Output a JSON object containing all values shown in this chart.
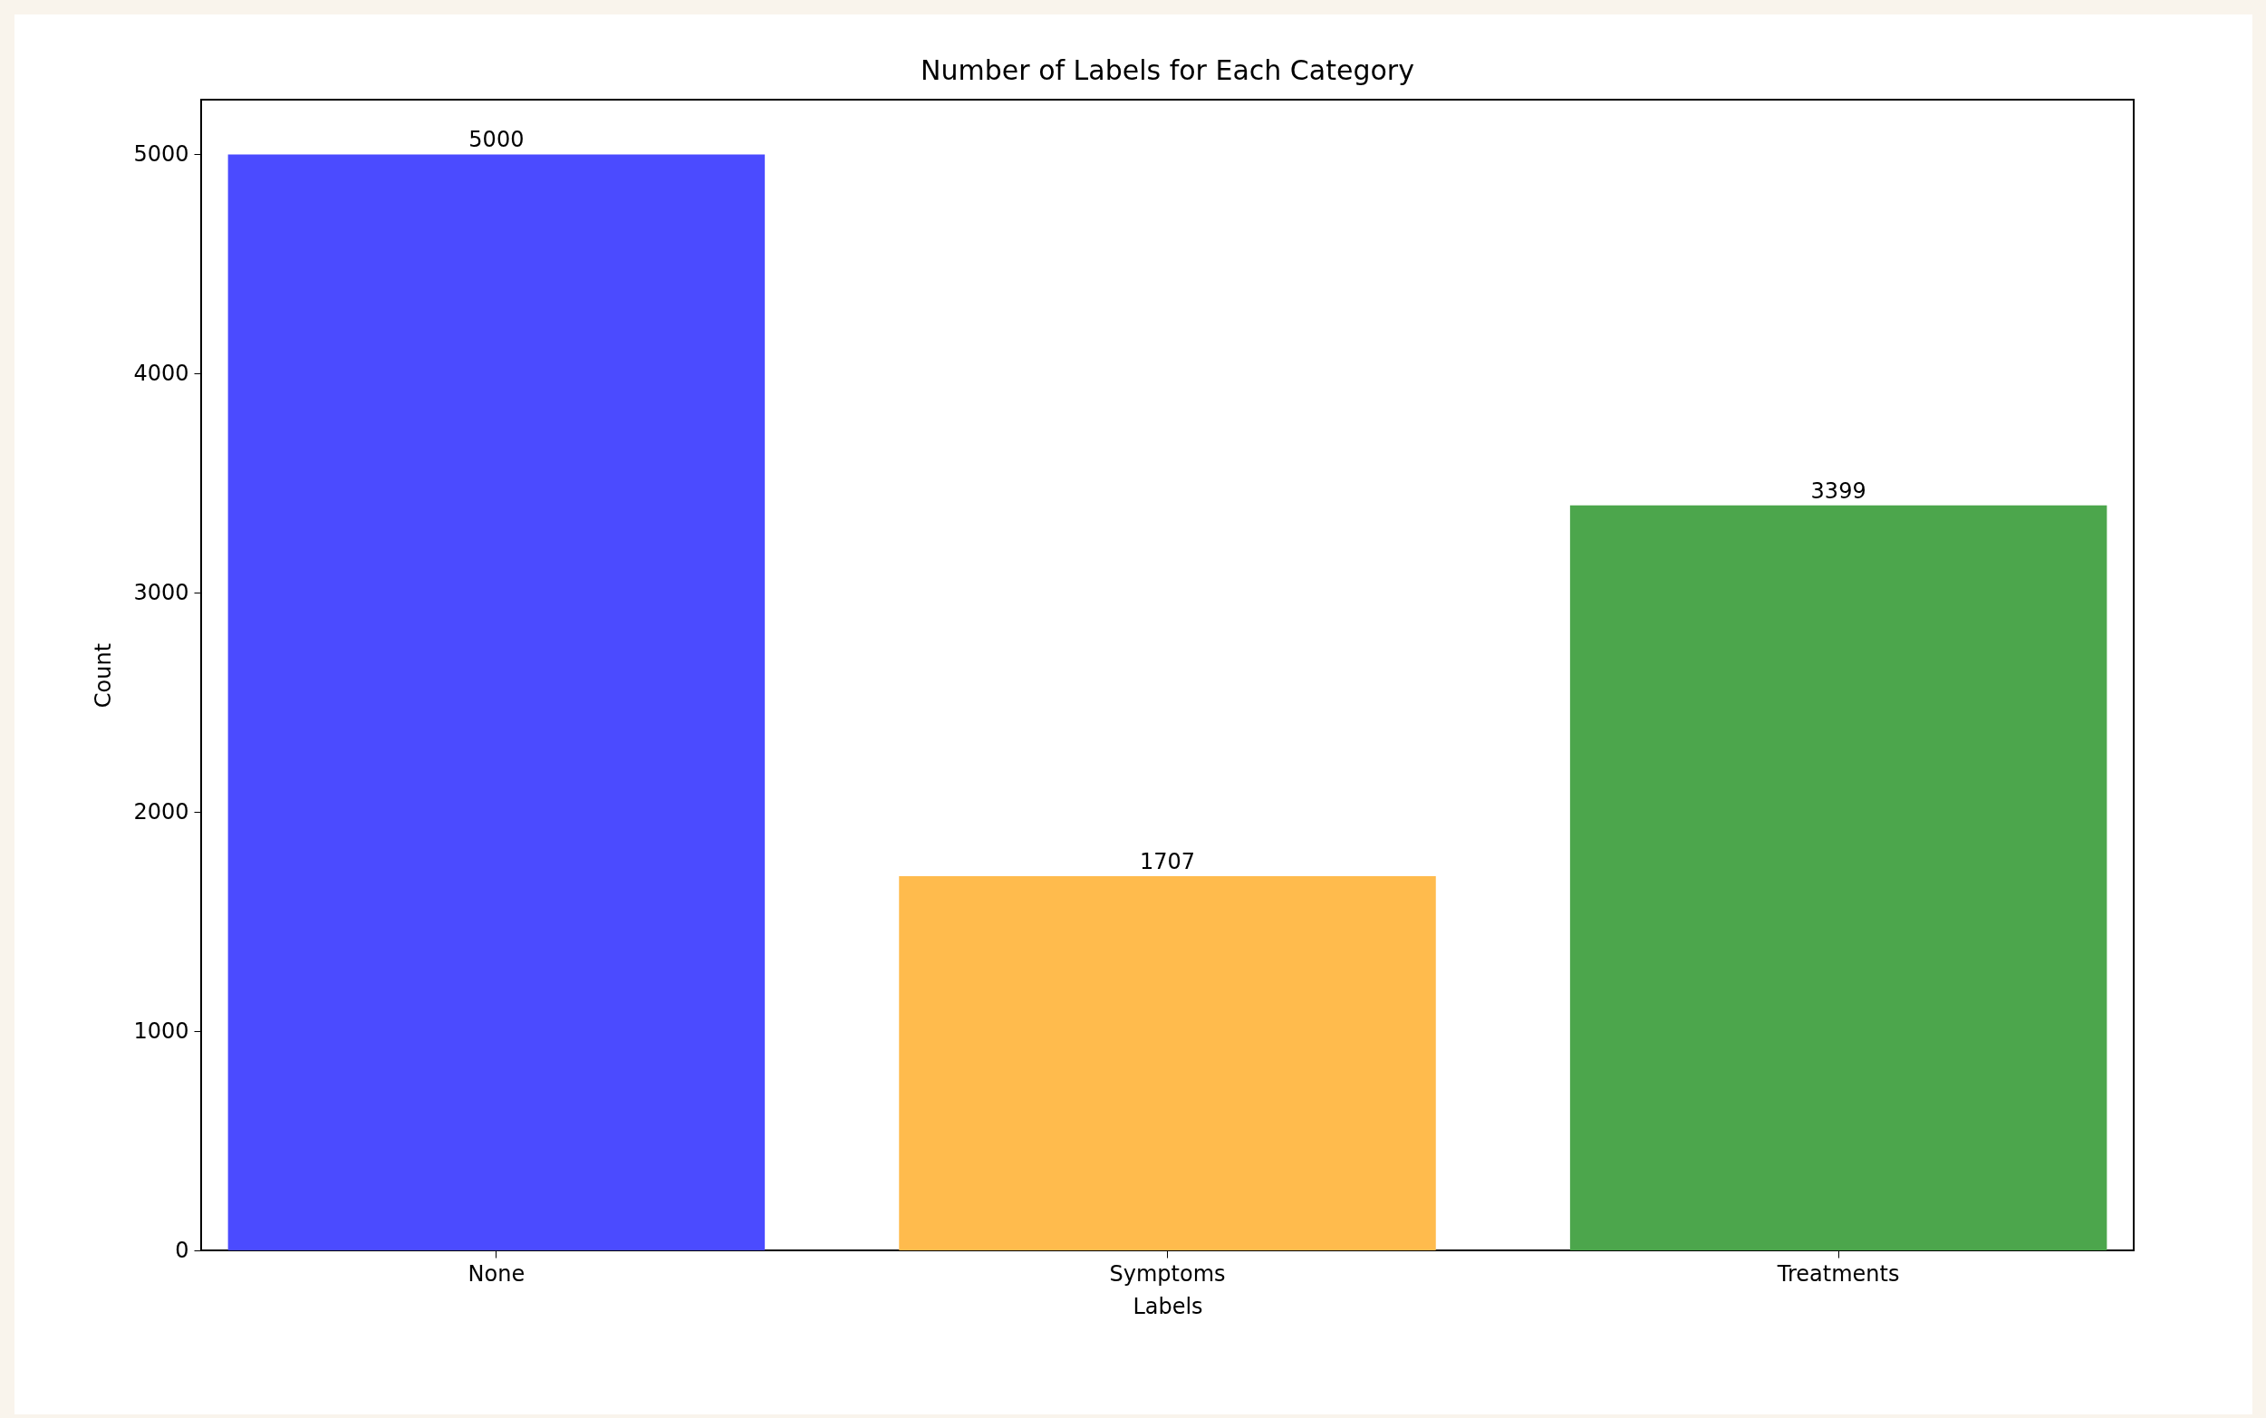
{
  "chart_data": {
    "type": "bar",
    "title": "Number of Labels for Each Category",
    "xlabel": "Labels",
    "ylabel": "Count",
    "categories": [
      "None",
      "Symptoms",
      "Treatments"
    ],
    "values": [
      5000,
      1707,
      3399
    ],
    "colors": [
      "#4b4bff",
      "#ffbb4d",
      "#4ca64c"
    ],
    "ylim": [
      0,
      5250
    ],
    "yticks": [
      0,
      1000,
      2000,
      3000,
      4000,
      5000
    ],
    "data_labels": true,
    "grid": false
  }
}
